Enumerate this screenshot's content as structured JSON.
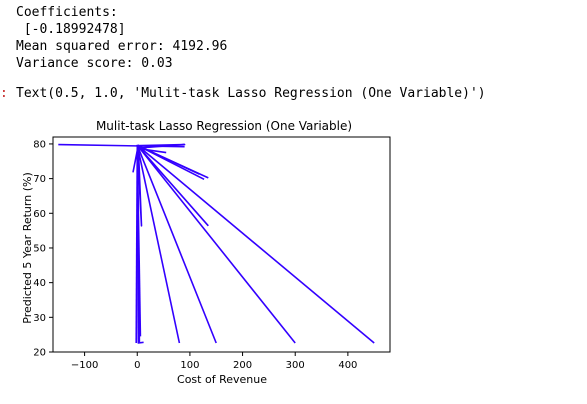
{
  "stream_output": {
    "line1": "Coefficients:",
    "line2": " [-0.18992478]",
    "line3": "Mean squared error: 4192.96",
    "line4": "Variance score: 0.03"
  },
  "execute_result": {
    "prompt": ":",
    "text": "Text(0.5, 1.0, 'Mulit-task Lasso Regression (One Variable)')"
  },
  "chart_data": {
    "type": "line",
    "title": "Mulit-task Lasso Regression (One Variable)",
    "xlabel": "Cost of Revenue",
    "ylabel": "Predicted 5 Year Return (%)",
    "xlim": [
      -160,
      480
    ],
    "ylim": [
      20,
      82
    ],
    "xticks": [
      -100,
      0,
      100,
      200,
      300,
      400
    ],
    "xtick_labels": [
      "−100",
      "0",
      "100",
      "200",
      "300",
      "400"
    ],
    "yticks": [
      20,
      30,
      40,
      50,
      60,
      70,
      80
    ],
    "grid": false,
    "color": "#3300ff",
    "series": [
      {
        "x": [
          -150,
          90
        ],
        "y": [
          79.8,
          79.2
        ]
      },
      {
        "x": [
          -2,
          90,
          0
        ],
        "y": [
          79.5,
          79.8,
          78.8
        ]
      },
      {
        "x": [
          -8,
          2,
          5,
          55
        ],
        "y": [
          71.8,
          79.6,
          78.6,
          77.5
        ]
      },
      {
        "x": [
          0,
          118
        ],
        "y": [
          79.6,
          71.3
        ]
      },
      {
        "x": [
          0,
          127
        ],
        "y": [
          79.6,
          69.8
        ]
      },
      {
        "x": [
          0,
          135
        ],
        "y": [
          79.6,
          70.2
        ]
      },
      {
        "x": [
          0,
          450
        ],
        "y": [
          79.6,
          22.6
        ]
      },
      {
        "x": [
          0,
          300
        ],
        "y": [
          79.6,
          22.6
        ]
      },
      {
        "x": [
          0,
          150
        ],
        "y": [
          79.6,
          22.6
        ]
      },
      {
        "x": [
          0,
          80
        ],
        "y": [
          79.6,
          22.6
        ]
      },
      {
        "x": [
          0,
          135
        ],
        "y": [
          79.6,
          56.4
        ]
      },
      {
        "x": [
          0,
          2,
          12
        ],
        "y": [
          79.6,
          22.6,
          22.8
        ]
      },
      {
        "x": [
          0,
          8,
          2
        ],
        "y": [
          79.6,
          56.4,
          79.6
        ]
      },
      {
        "x": [
          0,
          -2
        ],
        "y": [
          79.6,
          22.6
        ]
      },
      {
        "x": [
          0,
          4
        ],
        "y": [
          79.6,
          22.6
        ]
      },
      {
        "x": [
          0,
          6
        ],
        "y": [
          79.6,
          24.5
        ]
      }
    ]
  }
}
